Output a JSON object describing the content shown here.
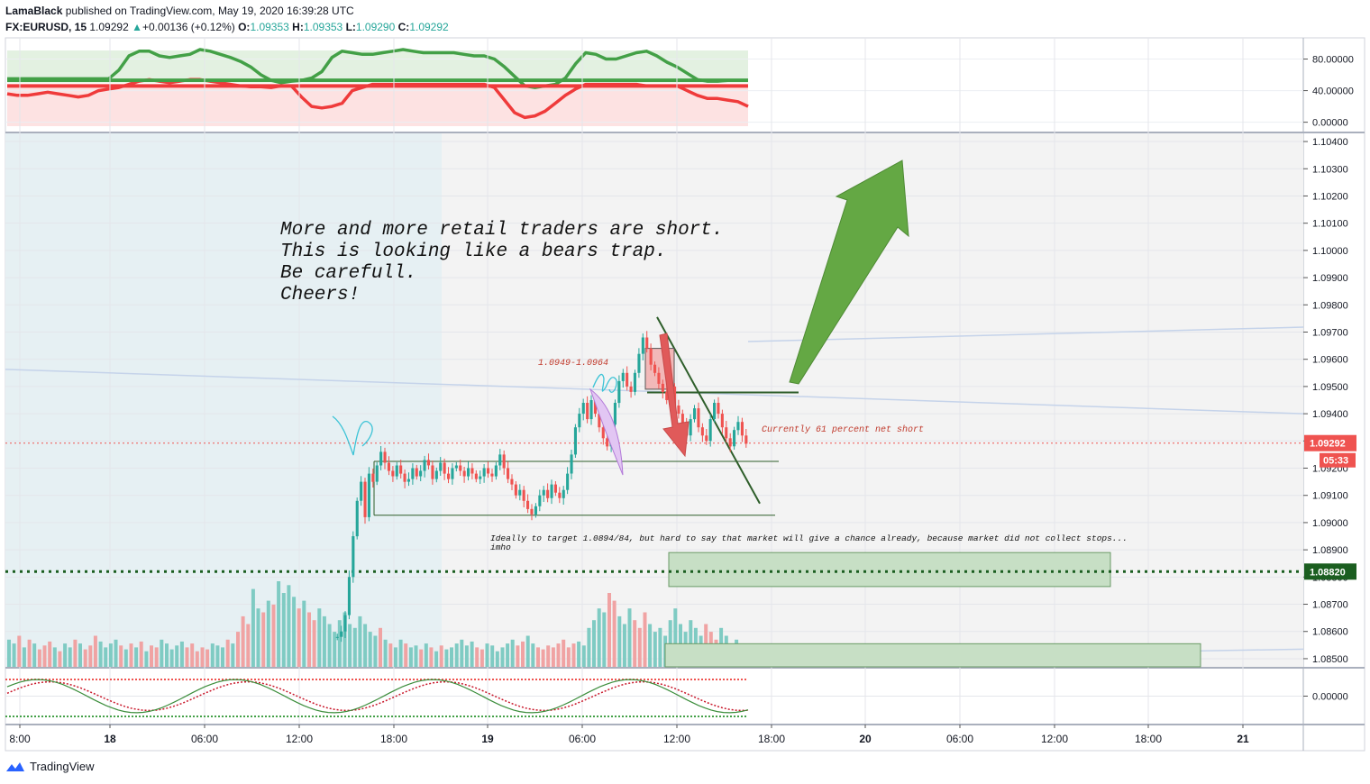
{
  "header": {
    "author": "LamaBlack",
    "published_text": "published on TradingView.com, May 19, 2020 16:39:28 UTC",
    "symbol": "FX:EURUSD, 15",
    "last": "1.09292",
    "up_glyph": "▲",
    "change": "+0.00136 (+0.12%)",
    "o_label": "O:",
    "o_value": "1.09353",
    "h_label": "H:",
    "h_value": "1.09353",
    "l_label": "L:",
    "l_value": "1.09290",
    "c_label": "C:",
    "c_value": "1.09292"
  },
  "footer": {
    "brand": "TradingView",
    "logo_icon": "tradingview-logo-icon"
  },
  "colors": {
    "up": "#26a69a",
    "down": "#ef5350",
    "vol_up": "#7fcbc3",
    "vol_down": "#f0a3a3",
    "rsi_green": "#43a047",
    "rsi_red": "#ef3b3b",
    "annotation_red": "#c0392b",
    "arrow_green": "#64a844",
    "arrow_red": "#e05a5a",
    "zone_green": "#c7dfc5"
  },
  "chart_data": [
    {
      "type": "line",
      "name": "oscillator",
      "y_ticks": [
        "80.00000",
        "40.00000",
        "0.00000"
      ],
      "ylim": [
        -5,
        100
      ],
      "series": [
        {
          "name": "",
          "color": "green",
          "values": [
            55,
            55,
            55,
            55,
            55,
            55,
            55,
            55,
            55,
            55,
            55,
            66,
            84,
            90,
            90,
            84,
            82,
            84,
            86,
            92,
            90,
            86,
            82,
            77,
            70,
            60,
            53,
            50,
            52,
            53,
            56,
            64,
            82,
            90,
            88,
            86,
            86,
            88,
            90,
            92,
            90,
            88,
            88,
            88,
            88,
            86,
            84,
            84,
            80,
            70,
            58,
            46,
            44,
            46,
            48,
            56,
            74,
            88,
            86,
            80,
            80,
            84,
            88,
            90,
            84,
            76,
            70,
            62,
            54,
            52,
            52,
            53,
            53,
            53
          ]
        },
        {
          "name": "",
          "color": "red",
          "values": [
            36,
            34,
            34,
            36,
            38,
            36,
            34,
            32,
            34,
            40,
            42,
            44,
            48,
            52,
            54,
            52,
            50,
            52,
            54,
            54,
            52,
            50,
            48,
            46,
            45,
            45,
            44,
            46,
            46,
            32,
            20,
            18,
            20,
            24,
            40,
            44,
            48,
            48,
            48,
            48,
            48,
            48,
            48,
            48,
            48,
            48,
            48,
            48,
            44,
            28,
            12,
            6,
            8,
            14,
            24,
            34,
            42,
            48,
            48,
            48,
            48,
            48,
            48,
            46,
            46,
            46,
            46,
            40,
            34,
            30,
            30,
            28,
            26,
            20
          ]
        }
      ],
      "levels": [
        53,
        46
      ]
    },
    {
      "type": "candlestick",
      "name": "FX:EURUSD, 15",
      "x_ticks": [
        "8:00",
        "18",
        "06:00",
        "12:00",
        "18:00",
        "19",
        "06:00",
        "12:00",
        "18:00",
        "20",
        "06:00",
        "12:00",
        "18:00",
        "21"
      ],
      "y_ticks": [
        "1.10400",
        "1.10300",
        "1.10200",
        "1.10100",
        "1.10000",
        "1.09900",
        "1.09800",
        "1.09700",
        "1.09600",
        "1.09500",
        "1.09400",
        "1.09300",
        "1.09200",
        "1.09100",
        "1.09000",
        "1.08900",
        "1.08800",
        "1.08700",
        "1.08600",
        "1.08500"
      ],
      "ylim": [
        1.0847,
        1.1043
      ],
      "last_price": "1.09292",
      "countdown": "05:33",
      "dotted_level_label": "1.08820",
      "dotted_level": 1.0882,
      "closes": [
        1.0918,
        1.0915,
        1.0921,
        1.0926,
        1.0922,
        1.0919,
        1.0917,
        1.0921,
        1.0918,
        1.0915,
        1.0916,
        1.092,
        1.0917,
        1.0919,
        1.0923,
        1.0921,
        1.0916,
        1.0919,
        1.0922,
        1.0918,
        1.0916,
        1.092,
        1.0921,
        1.0919,
        1.0917,
        1.092,
        1.0918,
        1.0916,
        1.0917,
        1.092,
        1.0918,
        1.0917,
        1.0921,
        1.0925,
        1.092,
        1.0916,
        1.0914,
        1.091,
        1.0912,
        1.0908,
        1.0905,
        1.0903,
        1.0906,
        1.091,
        1.0912,
        1.0909,
        1.0914,
        1.0911,
        1.0909,
        1.0912,
        1.0918,
        1.0925,
        1.0935,
        1.094,
        1.0944,
        1.0938,
        1.0945,
        1.094,
        1.0935,
        1.0931,
        1.0928,
        1.0936,
        1.0944,
        1.0952,
        1.0955,
        1.095,
        1.0948,
        1.0955,
        1.0962,
        1.0968,
        1.0964,
        1.0958,
        1.0955,
        1.0951,
        1.0948,
        1.0945,
        1.095,
        1.0943,
        1.094,
        1.0936,
        1.0932,
        1.0938,
        1.0942,
        1.0935,
        1.0932,
        1.093,
        1.0938,
        1.0944,
        1.094,
        1.0935,
        1.0931,
        1.0928,
        1.0934,
        1.0937,
        1.0932,
        1.0929
      ],
      "volumes": [
        14,
        12,
        16,
        10,
        14,
        12,
        9,
        11,
        13,
        10,
        8,
        12,
        10,
        14,
        12,
        9,
        11,
        16,
        13,
        10,
        12,
        14,
        11,
        9,
        12,
        10,
        13,
        8,
        11,
        10,
        14,
        12,
        9,
        11,
        13,
        10,
        12,
        8,
        10,
        9,
        12,
        11,
        10,
        14,
        12,
        18,
        26,
        22,
        40,
        30,
        28,
        34,
        32,
        44,
        38,
        42,
        36,
        30,
        34,
        28,
        24,
        30,
        26,
        22,
        18,
        24,
        28,
        22,
        20,
        26,
        22,
        18,
        16,
        20,
        14,
        12,
        10,
        14,
        12,
        10,
        11,
        9,
        12,
        10,
        8,
        11,
        9,
        10,
        12,
        14,
        11,
        13,
        10,
        9,
        12,
        11,
        8,
        10,
        12,
        14,
        11,
        13,
        16,
        12,
        10,
        9,
        11,
        10,
        12,
        14,
        10,
        12,
        13,
        11,
        20,
        24,
        30,
        28,
        38,
        34,
        26,
        22,
        30,
        24,
        20,
        28,
        22,
        18,
        20,
        16,
        24,
        30,
        22,
        18,
        24,
        20,
        16,
        22,
        18,
        14,
        20,
        16,
        12,
        14,
        10,
        8
      ],
      "annotations": {
        "main_note": [
          "More and more retail traders are short.",
          "This is looking like a bears trap.",
          "Be carefull.",
          "Cheers!"
        ],
        "zone_label": "1.0949-1.0964",
        "short_note": "Currently 61 percent net short",
        "target_note": [
          "Ideally to target 1.0894/84, but hard to say that market will give a chance already, because market did not collect stops...",
          "imho"
        ]
      }
    },
    {
      "type": "line",
      "name": "stochastic oscillator",
      "y_ticks": [
        "0.00000"
      ],
      "ylim": [
        -1,
        1
      ]
    }
  ]
}
